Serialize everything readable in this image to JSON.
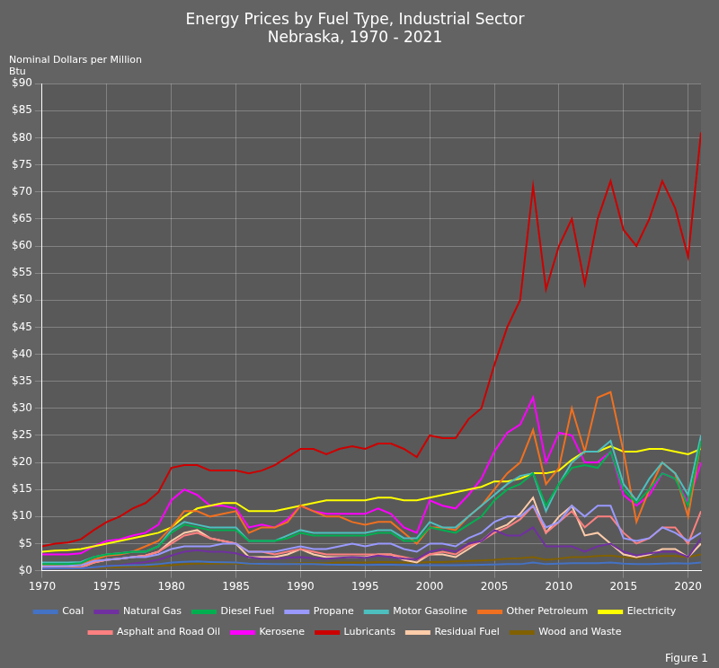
{
  "chart_data": {
    "type": "line",
    "title": "Energy Prices by Fuel Type, Industrial Sector\nNebraska, 1970 - 2021",
    "ylabel": "Nominal Dollars per Million\nBtu",
    "annotations": [
      "Figure 1"
    ],
    "x": [
      1970,
      1971,
      1972,
      1973,
      1974,
      1975,
      1976,
      1977,
      1978,
      1979,
      1980,
      1981,
      1982,
      1983,
      1984,
      1985,
      1986,
      1987,
      1988,
      1989,
      1990,
      1991,
      1992,
      1993,
      1994,
      1995,
      1996,
      1997,
      1998,
      1999,
      2000,
      2001,
      2002,
      2003,
      2004,
      2005,
      2006,
      2007,
      2008,
      2009,
      2010,
      2011,
      2012,
      2013,
      2014,
      2015,
      2016,
      2017,
      2018,
      2019,
      2020,
      2021
    ],
    "series": [
      {
        "name": "Coal",
        "color": "#4472C4",
        "values": [
          0.35,
          0.37,
          0.38,
          0.42,
          0.65,
          0.85,
          0.95,
          1.0,
          1.05,
          1.2,
          1.5,
          1.65,
          1.7,
          1.6,
          1.55,
          1.5,
          1.3,
          1.25,
          1.2,
          1.2,
          1.2,
          1.2,
          1.15,
          1.1,
          1.1,
          1.05,
          1.1,
          1.1,
          1.05,
          1.0,
          1.0,
          1.0,
          1.0,
          1.05,
          1.1,
          1.15,
          1.2,
          1.2,
          1.5,
          1.2,
          1.3,
          1.4,
          1.4,
          1.4,
          1.5,
          1.3,
          1.2,
          1.2,
          1.3,
          1.4,
          1.3,
          1.5
        ]
      },
      {
        "name": "Natural Gas",
        "color": "#7030A0",
        "values": [
          0.35,
          0.38,
          0.4,
          0.45,
          0.6,
          0.85,
          1.0,
          1.3,
          1.6,
          2.0,
          2.8,
          3.5,
          3.8,
          3.5,
          3.5,
          3.2,
          2.5,
          2.2,
          2.2,
          2.4,
          2.5,
          2.3,
          2.2,
          2.4,
          2.5,
          2.4,
          2.8,
          2.5,
          2.2,
          2.1,
          3.5,
          4.0,
          3.5,
          5.0,
          5.5,
          7.5,
          6.5,
          6.5,
          8.0,
          4.5,
          4.5,
          4.5,
          3.5,
          4.5,
          5.0,
          3.5,
          2.8,
          3.2,
          3.5,
          3.5,
          2.5,
          6.0
        ]
      },
      {
        "name": "Diesel Fuel",
        "color": "#00B050",
        "values": [
          1.2,
          1.2,
          1.2,
          1.4,
          2.5,
          3.0,
          3.2,
          3.5,
          3.5,
          4.5,
          7.0,
          8.5,
          8.0,
          7.5,
          7.5,
          7.5,
          5.5,
          5.5,
          5.5,
          6.0,
          7.0,
          6.5,
          6.5,
          6.5,
          6.5,
          6.5,
          7.0,
          7.0,
          5.5,
          5.5,
          8.0,
          7.5,
          7.0,
          8.5,
          10.0,
          13.0,
          15.0,
          16.0,
          18.0,
          12.0,
          16.0,
          19.0,
          19.5,
          19.0,
          22.0,
          15.0,
          12.5,
          15.0,
          18.0,
          17.0,
          12.0,
          24.0
        ]
      },
      {
        "name": "Propane",
        "color": "#9999FF",
        "values": [
          0.8,
          0.8,
          0.9,
          1.0,
          1.8,
          2.0,
          2.2,
          2.5,
          2.5,
          3.0,
          4.0,
          4.5,
          4.5,
          4.5,
          5.0,
          5.0,
          3.5,
          3.5,
          3.5,
          4.0,
          4.5,
          4.0,
          4.0,
          4.5,
          5.0,
          4.5,
          5.0,
          5.0,
          4.0,
          3.5,
          5.0,
          5.0,
          4.5,
          6.0,
          7.0,
          9.0,
          10.0,
          10.0,
          12.0,
          8.0,
          9.0,
          12.0,
          10.0,
          12.0,
          12.0,
          6.0,
          5.5,
          6.0,
          8.0,
          7.0,
          5.5,
          7.0
        ]
      },
      {
        "name": "Motor Gasoline",
        "color": "#4DBFBF",
        "values": [
          1.5,
          1.5,
          1.5,
          1.6,
          2.5,
          3.0,
          3.2,
          3.5,
          3.5,
          4.5,
          7.5,
          9.0,
          8.5,
          8.0,
          8.0,
          8.0,
          5.5,
          5.5,
          5.5,
          6.5,
          7.5,
          7.0,
          7.0,
          7.0,
          7.0,
          7.0,
          7.5,
          7.5,
          6.0,
          6.0,
          9.0,
          8.0,
          8.0,
          10.0,
          12.0,
          14.0,
          16.0,
          17.5,
          18.0,
          11.0,
          16.0,
          20.0,
          22.0,
          22.0,
          24.0,
          16.0,
          13.0,
          17.0,
          20.0,
          18.0,
          14.0,
          25.0
        ]
      },
      {
        "name": "Other Petroleum",
        "color": "#F07020",
        "values": [
          1.0,
          1.0,
          1.0,
          1.2,
          2.0,
          2.8,
          3.0,
          3.5,
          4.5,
          5.5,
          8.0,
          11.0,
          11.0,
          10.0,
          10.5,
          11.0,
          7.0,
          8.0,
          8.0,
          9.0,
          12.0,
          11.0,
          10.0,
          10.0,
          9.0,
          8.5,
          9.0,
          9.0,
          7.0,
          5.0,
          8.0,
          8.0,
          7.5,
          10.0,
          12.0,
          15.0,
          18.0,
          20.0,
          26.0,
          16.0,
          19.0,
          30.0,
          22.0,
          32.0,
          33.0,
          22.0,
          9.0,
          15.0,
          20.0,
          18.0,
          10.0,
          24.0
        ]
      },
      {
        "name": "Electricity",
        "color": "#FFFF00",
        "values": [
          3.5,
          3.7,
          3.8,
          4.0,
          4.5,
          5.0,
          5.5,
          6.0,
          6.5,
          7.0,
          8.0,
          10.0,
          11.5,
          12.0,
          12.5,
          12.5,
          11.0,
          11.0,
          11.0,
          11.5,
          12.0,
          12.5,
          13.0,
          13.0,
          13.0,
          13.0,
          13.5,
          13.5,
          13.0,
          13.0,
          13.5,
          14.0,
          14.5,
          15.0,
          15.5,
          16.5,
          16.5,
          17.0,
          18.0,
          18.0,
          18.5,
          20.5,
          22.0,
          22.0,
          23.0,
          22.0,
          22.0,
          22.5,
          22.5,
          22.0,
          21.5,
          22.5
        ]
      },
      {
        "name": "Asphalt and Road Oil",
        "color": "#FF8080",
        "values": [
          0.5,
          0.5,
          0.5,
          0.6,
          1.5,
          2.0,
          2.2,
          2.5,
          2.8,
          3.5,
          5.0,
          6.5,
          7.0,
          6.0,
          5.5,
          5.0,
          3.5,
          3.5,
          3.0,
          3.5,
          4.0,
          3.5,
          3.0,
          3.0,
          3.0,
          3.0,
          3.0,
          3.0,
          2.5,
          2.0,
          3.0,
          3.5,
          3.0,
          4.5,
          5.5,
          7.0,
          8.0,
          9.5,
          12.0,
          7.0,
          9.0,
          11.0,
          8.0,
          10.0,
          10.0,
          7.0,
          5.0,
          6.0,
          8.0,
          8.0,
          5.0,
          11.0
        ]
      },
      {
        "name": "Kerosene",
        "color": "#FF00FF",
        "values": [
          3.0,
          3.0,
          3.0,
          3.2,
          4.5,
          5.5,
          5.8,
          6.5,
          7.0,
          8.5,
          13.0,
          15.0,
          14.0,
          12.0,
          12.0,
          11.5,
          8.0,
          8.5,
          8.0,
          9.5,
          12.0,
          11.0,
          10.5,
          10.5,
          10.5,
          10.5,
          11.5,
          10.5,
          8.0,
          7.0,
          13.0,
          12.0,
          11.5,
          14.0,
          17.0,
          22.0,
          25.5,
          27.0,
          32.0,
          20.0,
          25.5,
          25.0,
          20.0,
          20.0,
          22.0,
          14.0,
          12.0,
          14.0,
          18.0,
          17.0,
          12.5,
          20.0
        ]
      },
      {
        "name": "Lubricants",
        "color": "#CC0000",
        "values": [
          4.5,
          5.0,
          5.2,
          5.8,
          7.5,
          9.0,
          10.0,
          11.5,
          12.5,
          14.5,
          19.0,
          19.5,
          19.5,
          18.5,
          18.5,
          18.5,
          18.0,
          18.5,
          19.5,
          21.0,
          22.5,
          22.5,
          21.5,
          22.5,
          23.0,
          22.5,
          23.5,
          23.5,
          22.5,
          21.0,
          25.0,
          24.5,
          24.5,
          28.0,
          30.0,
          38.0,
          45.0,
          50.0,
          71.0,
          52.0,
          60.0,
          65.0,
          53.0,
          65.0,
          72.0,
          63.0,
          60.0,
          65.0,
          72.0,
          67.0,
          58.0,
          81.0
        ]
      },
      {
        "name": "Residual Fuel",
        "color": "#FFCCAA",
        "values": [
          0.5,
          0.5,
          0.5,
          0.6,
          1.5,
          2.0,
          2.2,
          2.5,
          2.8,
          3.5,
          5.5,
          7.0,
          7.5,
          6.0,
          5.5,
          5.0,
          2.5,
          2.5,
          2.5,
          3.0,
          4.0,
          3.0,
          2.5,
          2.5,
          2.5,
          2.5,
          3.0,
          3.0,
          2.0,
          1.5,
          3.0,
          3.0,
          2.5,
          4.0,
          5.5,
          7.5,
          8.5,
          10.5,
          13.5,
          7.0,
          10.0,
          12.0,
          6.5,
          7.0,
          5.0,
          3.0,
          2.5,
          3.0,
          4.0,
          4.0,
          2.5,
          5.0
        ]
      },
      {
        "name": "Wood and Waste",
        "color": "#806000",
        "values": [
          0.3,
          0.3,
          0.3,
          0.4,
          0.5,
          0.6,
          0.7,
          0.8,
          0.8,
          0.9,
          1.0,
          1.2,
          1.3,
          1.3,
          1.3,
          1.3,
          1.2,
          1.2,
          1.2,
          1.3,
          1.4,
          1.4,
          1.4,
          1.5,
          1.5,
          1.5,
          1.6,
          1.6,
          1.5,
          1.5,
          1.6,
          1.6,
          1.7,
          1.8,
          1.9,
          2.0,
          2.2,
          2.3,
          2.5,
          2.0,
          2.2,
          2.5,
          2.5,
          2.7,
          2.8,
          2.5,
          2.3,
          2.5,
          2.7,
          2.7,
          2.5,
          3.0
        ]
      }
    ],
    "xlim": [
      1970,
      2021
    ],
    "xticks": [
      1970,
      1975,
      1980,
      1985,
      1990,
      1995,
      2000,
      2005,
      2010,
      2015,
      2020
    ],
    "ylim": [
      0,
      90
    ],
    "yticks": [
      {
        "value": 0,
        "label": "$0"
      },
      {
        "value": 5,
        "label": "$5"
      },
      {
        "value": 10,
        "label": "$10"
      },
      {
        "value": 15,
        "label": "$15"
      },
      {
        "value": 20,
        "label": "$20"
      },
      {
        "value": 25,
        "label": "$25"
      },
      {
        "value": 30,
        "label": "$30"
      },
      {
        "value": 35,
        "label": "$35"
      },
      {
        "value": 40,
        "label": "$40"
      },
      {
        "value": 45,
        "label": "$45"
      },
      {
        "value": 50,
        "label": "$50"
      },
      {
        "value": 55,
        "label": "$55"
      },
      {
        "value": 60,
        "label": "$60"
      },
      {
        "value": 65,
        "label": "$65"
      },
      {
        "value": 70,
        "label": "$70"
      },
      {
        "value": 75,
        "label": "$75"
      },
      {
        "value": 80,
        "label": "$80"
      },
      {
        "value": 85,
        "label": "$85"
      },
      {
        "value": 90,
        "label": "$90"
      }
    ],
    "grid": true,
    "legend": "bottom"
  }
}
